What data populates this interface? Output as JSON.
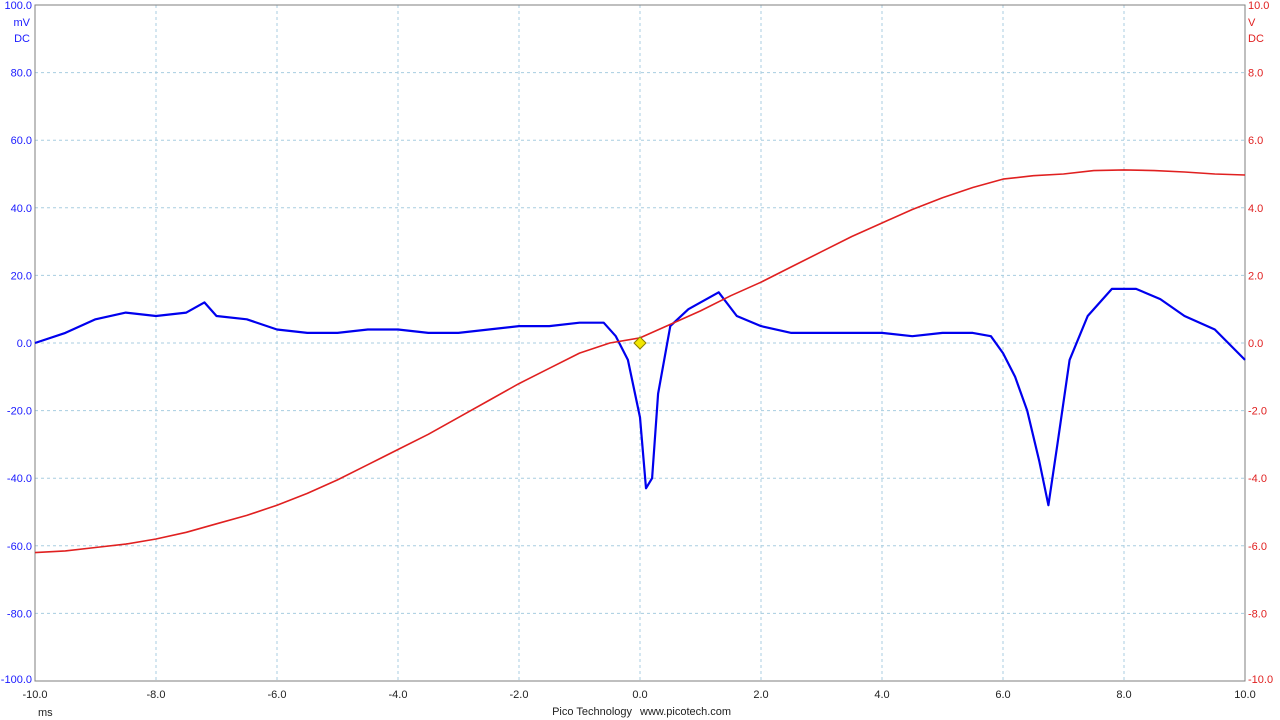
{
  "chart_data": {
    "type": "line",
    "x_unit": "ms",
    "xlim": [
      -10,
      10
    ],
    "x_ticks": [
      "-10.0",
      "-8.0",
      "-6.0",
      "-4.0",
      "-2.0",
      "0.0",
      "2.0",
      "4.0",
      "6.0",
      "8.0",
      "10.0"
    ],
    "left_axis": {
      "unit": "mV",
      "coupling": "DC",
      "ylim": [
        -100,
        100
      ],
      "ticks": [
        "100.0",
        "80.0",
        "60.0",
        "40.0",
        "20.0",
        "0.0",
        "-20.0",
        "-40.0",
        "-60.0",
        "-80.0",
        "-100.0"
      ],
      "color": "#1a1aff"
    },
    "right_axis": {
      "unit": "V",
      "coupling": "DC",
      "ylim": [
        -10,
        10
      ],
      "ticks": [
        "10.0",
        "8.0",
        "6.0",
        "4.0",
        "2.0",
        "0.0",
        "-2.0",
        "-4.0",
        "-6.0",
        "-8.0",
        "-10.0"
      ],
      "color": "#e02020"
    },
    "grid": true,
    "series": [
      {
        "axis": "left",
        "color": "#0000ee",
        "x": [
          -10,
          -9.5,
          -9,
          -8.5,
          -8,
          -7.5,
          -7.2,
          -7,
          -6.5,
          -6,
          -5.5,
          -5,
          -4.5,
          -4,
          -3.5,
          -3,
          -2.5,
          -2,
          -1.5,
          -1,
          -0.6,
          -0.4,
          -0.2,
          0,
          0.1,
          0.2,
          0.3,
          0.5,
          0.8,
          1,
          1.3,
          1.6,
          2,
          2.5,
          3,
          3.5,
          4,
          4.5,
          5,
          5.5,
          5.8,
          6,
          6.2,
          6.4,
          6.6,
          6.75,
          6.9,
          7.1,
          7.4,
          7.8,
          8.2,
          8.6,
          9,
          9.5,
          10
        ],
        "y": [
          0,
          3,
          7,
          9,
          8,
          9,
          12,
          8,
          7,
          4,
          3,
          3,
          4,
          4,
          3,
          3,
          4,
          5,
          5,
          6,
          6,
          2,
          -5,
          -22,
          -43,
          -40,
          -15,
          5,
          10,
          12,
          15,
          8,
          5,
          3,
          3,
          3,
          3,
          2,
          3,
          3,
          2,
          -3,
          -10,
          -20,
          -35,
          -48,
          -30,
          -5,
          8,
          16,
          16,
          13,
          8,
          4,
          -5
        ]
      },
      {
        "axis": "right",
        "color": "#e02020",
        "x": [
          -10,
          -9.5,
          -9,
          -8.5,
          -8,
          -7.5,
          -7,
          -6.5,
          -6,
          -5.5,
          -5,
          -4.5,
          -4,
          -3.5,
          -3,
          -2.5,
          -2,
          -1.5,
          -1,
          -0.5,
          0,
          0.5,
          1,
          1.5,
          2,
          2.5,
          3,
          3.5,
          4,
          4.5,
          5,
          5.5,
          6,
          6.5,
          7,
          7.5,
          8,
          8.5,
          9,
          9.5,
          10
        ],
        "y": [
          -6.2,
          -6.15,
          -6.05,
          -5.95,
          -5.8,
          -5.6,
          -5.35,
          -5.1,
          -4.8,
          -4.45,
          -4.05,
          -3.6,
          -3.15,
          -2.7,
          -2.2,
          -1.7,
          -1.2,
          -0.75,
          -0.3,
          0,
          0.15,
          0.55,
          0.95,
          1.4,
          1.8,
          2.25,
          2.7,
          3.15,
          3.55,
          3.95,
          4.3,
          4.6,
          4.85,
          4.95,
          5.0,
          5.1,
          5.12,
          5.1,
          5.06,
          5.0,
          4.97
        ]
      }
    ],
    "trigger": {
      "x": 0,
      "y": 0,
      "color": "#f2e600"
    },
    "footer": {
      "company": "Pico Technology",
      "website": "www.picotech.com"
    }
  }
}
